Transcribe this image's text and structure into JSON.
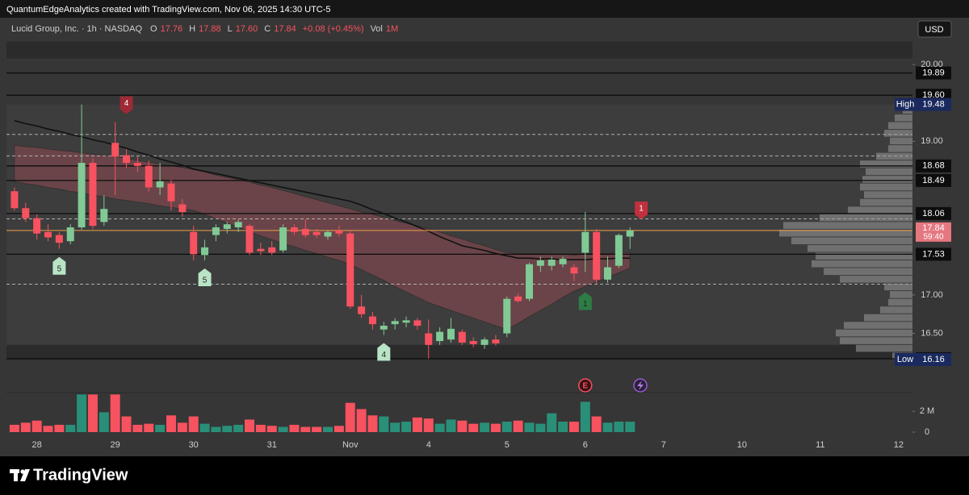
{
  "header": "QuantumEdgeAnalytics created with TradingView.com, Nov 06, 2025 14:30 UTC-5",
  "currency": "USD",
  "branding": "TradingView",
  "chart_data": {
    "type": "candlestick",
    "title": "Lucid Group, Inc. · 1h · NASDAQ",
    "ohlc_legend": [
      {
        "key": "O",
        "value": "17.76"
      },
      {
        "key": "H",
        "value": "17.88"
      },
      {
        "key": "L",
        "value": "17.60"
      },
      {
        "key": "C",
        "value": "17.84"
      },
      {
        "key": "",
        "value": "+0.08 (+0.45%)"
      },
      {
        "key": "Vol",
        "value": "1M"
      }
    ],
    "categories": [
      null,
      null,
      "28",
      null,
      null,
      null,
      null,
      null,
      null,
      "29",
      null,
      null,
      null,
      null,
      null,
      null,
      "30",
      null,
      null,
      null,
      null,
      null,
      null,
      "31",
      null,
      null,
      null,
      null,
      null,
      null,
      "Nov",
      null,
      null,
      null,
      null,
      null,
      null,
      "4",
      null,
      null,
      null,
      null,
      null,
      null,
      "5",
      null,
      null,
      null,
      null,
      null,
      null,
      "6",
      null,
      null,
      null,
      null,
      null,
      null,
      "7",
      null,
      null,
      null,
      null,
      null,
      null,
      "10",
      null,
      null,
      null,
      null,
      null,
      null,
      "11",
      null,
      null,
      null,
      null,
      null,
      null,
      "12"
    ],
    "open": [
      18.35,
      18.13,
      18.0,
      17.82,
      17.78,
      17.7,
      17.88,
      18.72,
      17.95,
      18.98,
      18.82,
      18.72,
      18.68,
      18.4,
      18.45,
      18.18,
      17.82,
      17.52,
      17.78,
      17.86,
      17.88,
      17.9,
      17.6,
      17.62,
      17.58,
      17.88,
      17.86,
      17.82,
      17.76,
      17.84,
      17.8,
      16.85,
      16.72,
      16.55,
      16.62,
      16.64,
      16.67,
      16.5,
      16.4,
      16.42,
      16.52,
      16.4,
      16.35,
      16.42,
      16.5,
      16.98,
      16.95,
      17.38,
      17.38,
      17.4,
      17.36,
      17.55,
      17.82,
      17.2,
      17.38,
      17.76,
      null,
      null,
      null,
      null,
      null,
      null,
      null,
      null,
      null,
      null,
      null,
      null,
      null,
      null,
      null,
      null,
      null,
      null,
      null,
      null,
      null,
      null,
      null,
      null
    ],
    "high": [
      18.4,
      18.2,
      18.05,
      17.92,
      17.82,
      17.92,
      19.48,
      18.78,
      18.3,
      19.25,
      18.9,
      18.8,
      18.75,
      18.72,
      18.5,
      18.25,
      17.9,
      17.72,
      17.92,
      17.95,
      17.98,
      17.92,
      17.68,
      17.7,
      17.92,
      17.92,
      17.98,
      17.86,
      17.84,
      17.9,
      17.85,
      17.0,
      16.78,
      16.65,
      16.7,
      16.72,
      16.7,
      16.68,
      16.58,
      16.7,
      16.55,
      16.45,
      16.45,
      16.48,
      16.98,
      17.02,
      17.42,
      17.5,
      17.5,
      17.5,
      17.4,
      18.08,
      17.86,
      17.5,
      17.8,
      17.88,
      null,
      null,
      null,
      null,
      null,
      null,
      null,
      null,
      null,
      null,
      null,
      null,
      null,
      null,
      null,
      null,
      null,
      null,
      null,
      null,
      null,
      null,
      null,
      null
    ],
    "low": [
      18.1,
      17.95,
      17.72,
      17.7,
      17.6,
      17.66,
      17.85,
      17.86,
      17.9,
      18.3,
      18.65,
      18.6,
      18.35,
      18.3,
      18.1,
      18.02,
      17.45,
      17.45,
      17.7,
      17.8,
      17.82,
      17.52,
      17.52,
      17.52,
      17.55,
      17.78,
      17.75,
      17.74,
      17.72,
      17.76,
      16.82,
      16.7,
      16.55,
      16.48,
      16.55,
      16.58,
      16.55,
      16.17,
      16.35,
      16.38,
      16.35,
      16.32,
      16.3,
      16.34,
      16.45,
      16.9,
      16.92,
      17.3,
      17.32,
      17.36,
      17.18,
      17.3,
      17.14,
      17.16,
      17.35,
      17.6,
      null,
      null,
      null,
      null,
      null,
      null,
      null,
      null,
      null,
      null,
      null,
      null,
      null,
      null,
      null,
      null,
      null,
      null,
      null,
      null,
      null,
      null,
      null,
      null
    ],
    "close": [
      18.13,
      18.0,
      17.8,
      17.75,
      17.68,
      17.88,
      18.72,
      17.9,
      18.12,
      18.8,
      18.72,
      18.68,
      18.4,
      18.48,
      18.22,
      18.08,
      17.53,
      17.62,
      17.88,
      17.92,
      17.95,
      17.55,
      17.57,
      17.55,
      17.88,
      17.82,
      17.78,
      17.78,
      17.82,
      17.8,
      16.85,
      16.75,
      16.62,
      16.6,
      16.66,
      16.67,
      16.6,
      16.35,
      16.52,
      16.56,
      16.38,
      16.36,
      16.42,
      16.37,
      16.95,
      16.92,
      17.4,
      17.45,
      17.46,
      17.47,
      17.28,
      17.82,
      17.2,
      17.36,
      17.78,
      17.84,
      null,
      null,
      null,
      null,
      null,
      null,
      null,
      null,
      null,
      null,
      null,
      null,
      null,
      null,
      null,
      null,
      null,
      null,
      null,
      null,
      null,
      null,
      null,
      null
    ],
    "volume": [
      700000,
      900000,
      1100000,
      600000,
      700000,
      700000,
      3600000,
      3600000,
      1900000,
      3600000,
      1500000,
      700000,
      800000,
      700000,
      1600000,
      900000,
      1500000,
      800000,
      500000,
      600000,
      700000,
      1200000,
      700000,
      600000,
      500000,
      700000,
      500000,
      500000,
      500000,
      600000,
      2800000,
      2200000,
      1600000,
      1500000,
      900000,
      1000000,
      1400000,
      1300000,
      800000,
      1200000,
      1100000,
      800000,
      900000,
      800000,
      1000000,
      1100000,
      900000,
      800000,
      1800000,
      1000000,
      1000000,
      2900000,
      1500000,
      900000,
      1000000,
      1000000,
      null,
      null,
      null,
      null,
      null,
      null,
      null,
      null,
      null,
      null,
      null,
      null,
      null,
      null,
      null,
      null,
      null,
      null,
      null,
      null,
      null,
      null,
      null,
      null
    ],
    "ma": [
      19.27,
      19.23,
      19.2,
      19.16,
      19.13,
      19.09,
      19.06,
      19.02,
      18.99,
      18.95,
      18.91,
      18.86,
      18.82,
      18.77,
      18.73,
      18.69,
      18.64,
      18.61,
      18.58,
      18.55,
      18.52,
      18.49,
      18.46,
      18.43,
      18.4,
      18.37,
      18.34,
      18.31,
      18.28,
      18.25,
      18.22,
      18.17,
      18.11,
      18.06,
      18.0,
      17.95,
      17.89,
      17.83,
      17.76,
      17.7,
      17.64,
      17.61,
      17.58,
      17.54,
      17.51,
      17.48,
      17.48,
      17.47,
      17.47,
      17.46,
      17.46,
      17.46,
      17.47,
      17.47,
      17.48,
      17.48,
      null,
      null,
      null,
      null,
      null,
      null,
      null,
      null,
      null,
      null,
      null,
      null,
      null,
      null,
      null,
      null,
      null,
      null,
      null,
      null,
      null,
      null,
      null,
      null
    ],
    "band_upper": [
      18.95,
      18.93,
      18.92,
      18.9,
      18.88,
      18.87,
      18.85,
      18.83,
      18.82,
      18.8,
      18.78,
      18.75,
      18.73,
      18.7,
      18.68,
      18.66,
      18.63,
      18.6,
      18.56,
      18.53,
      18.5,
      18.47,
      18.43,
      18.4,
      18.36,
      18.32,
      18.28,
      18.24,
      18.2,
      18.16,
      18.12,
      18.08,
      18.05,
      18.01,
      17.97,
      17.93,
      17.9,
      17.86,
      17.82,
      17.77,
      17.73,
      17.68,
      17.64,
      17.59,
      17.55,
      17.54,
      17.54,
      17.54,
      17.53,
      17.53,
      17.52,
      17.53,
      17.54,
      17.54,
      17.55,
      17.55,
      null,
      null,
      null,
      null,
      null,
      null,
      null,
      null,
      null,
      null,
      null,
      null,
      null,
      null,
      null,
      null,
      null,
      null,
      null,
      null,
      null,
      null,
      null,
      null
    ],
    "band_lower": [
      18.48,
      18.45,
      18.43,
      18.4,
      18.38,
      18.35,
      18.33,
      18.3,
      18.28,
      18.25,
      18.23,
      18.21,
      18.19,
      18.16,
      18.14,
      18.12,
      18.1,
      18.05,
      17.99,
      17.94,
      17.88,
      17.83,
      17.77,
      17.72,
      17.67,
      17.63,
      17.58,
      17.54,
      17.49,
      17.45,
      17.4,
      17.33,
      17.26,
      17.19,
      17.11,
      17.04,
      16.97,
      16.9,
      16.85,
      16.8,
      16.75,
      16.7,
      16.65,
      16.6,
      16.55,
      16.63,
      16.72,
      16.8,
      16.88,
      16.97,
      17.05,
      17.11,
      17.17,
      17.23,
      17.29,
      17.35,
      null,
      null,
      null,
      null,
      null,
      null,
      null,
      null,
      null,
      null,
      null,
      null,
      null,
      null,
      null,
      null,
      null,
      null,
      null,
      null,
      null,
      null,
      null,
      null
    ],
    "ylim": [
      15.75,
      20.42
    ],
    "yticks": [
      {
        "value": 20,
        "label": "20.00"
      },
      {
        "value": 19,
        "label": "19.00"
      },
      {
        "value": 17,
        "label": "17.00"
      },
      {
        "value": 16.5,
        "label": "16.50"
      }
    ],
    "volume_ylim": [
      0,
      3700000
    ],
    "volume_yticks": [
      0,
      {
        "value": 2000000,
        "label": "2 M"
      }
    ],
    "levels": [
      19.89,
      {
        "value": 19.6,
        "label": "19.60"
      },
      18.68,
      18.49,
      18.06,
      17.53,
      16.17
    ],
    "dashed_levels": [
      19.09,
      18.81,
      17.99,
      17.14
    ],
    "zones": [
      {
        "from": 20.08,
        "to": 20.3,
        "color": "#2b2b2b"
      },
      {
        "from": 16.35,
        "to": 19.48,
        "color": "#3d3d3d"
      },
      {
        "from": 16.17,
        "to": 16.35,
        "color": "#2b2b2b"
      }
    ],
    "high_marker": {
      "label": "High",
      "value": 19.48
    },
    "low_marker": {
      "label": "Low",
      "value": 16.16
    },
    "last_price": 17.84,
    "countdown": "59:40",
    "volume_profile": {
      "prices": [
        16.2,
        16.3,
        16.4,
        16.5,
        16.6,
        16.7,
        16.8,
        16.9,
        17.0,
        17.1,
        17.2,
        17.3,
        17.4,
        17.5,
        17.6,
        17.7,
        17.8,
        17.9,
        18.0,
        18.1,
        18.2,
        18.3,
        18.4,
        18.5,
        18.6,
        18.7,
        18.8,
        18.9,
        19.0,
        19.1,
        19.2,
        19.3,
        19.4
      ],
      "values": [
        25,
        70,
        90,
        95,
        85,
        60,
        40,
        30,
        28,
        35,
        90,
        110,
        125,
        120,
        130,
        150,
        165,
        160,
        115,
        80,
        65,
        60,
        65,
        62,
        58,
        65,
        45,
        30,
        28,
        35,
        30,
        22,
        12
      ]
    },
    "markers": [
      {
        "label": "5",
        "index": 4,
        "side": "below",
        "color": "#b9e4c6"
      },
      {
        "label": "4",
        "index": 10,
        "side": "above",
        "color": "#9e2a36"
      },
      {
        "label": "5",
        "index": 17,
        "side": "below",
        "color": "#b9e4c6"
      },
      {
        "label": "4",
        "index": 33,
        "side": "below",
        "color": "#b9e4c6"
      },
      {
        "label": "1",
        "index": 51,
        "side": "below",
        "color": "#2e7d46"
      },
      {
        "label": "1",
        "index": 56,
        "side": "above",
        "color": "#c0303d"
      }
    ],
    "events": [
      {
        "label": "E",
        "index": 51
      }
    ],
    "colors": {
      "up": "#81c995",
      "down": "#f7525f",
      "volume_up": "#2a8f78",
      "volume_down": "#f7525f",
      "ma": "#111111",
      "band": "#c0545f",
      "level": "#0b0b0b",
      "last_price": "#f0a04b",
      "profile": "#9a9a9a"
    }
  }
}
